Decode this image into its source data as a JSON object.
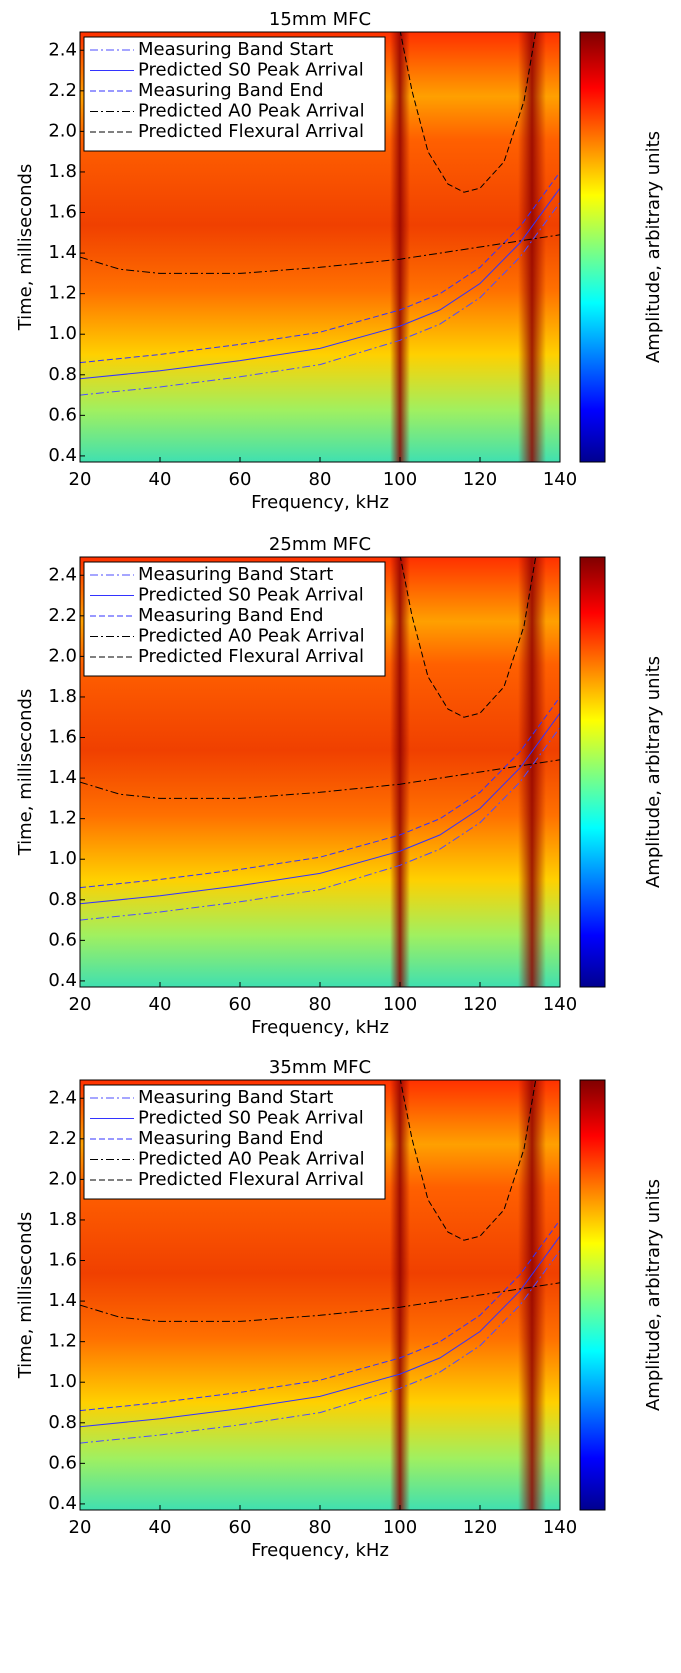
{
  "chart_data": [
    {
      "type": "line",
      "title": "15mm MFC",
      "xlabel": "Frequency, kHz",
      "ylabel": "Time, milliseconds",
      "colorbar_label": "Amplitude, arbitrary units",
      "xlim": [
        20,
        140
      ],
      "ylim": [
        0.37,
        2.49
      ],
      "xticks": [
        20,
        40,
        60,
        80,
        100,
        120,
        140
      ],
      "yticks": [
        0.4,
        0.6,
        0.8,
        {
          "value": 1,
          "label": "1.0"
        },
        1.2,
        1.4,
        1.6,
        1.8,
        {
          "value": 2,
          "label": "2.0"
        },
        2.2,
        2.4
      ],
      "legend": "upper left",
      "series": [
        {
          "name": "Measuring Band Start",
          "color": "#4d4dff",
          "style": "dash-dot",
          "x": [
            20,
            40,
            60,
            80,
            100,
            110,
            120,
            130,
            140
          ],
          "values": [
            0.7,
            0.74,
            0.79,
            0.85,
            0.97,
            1.05,
            1.18,
            1.38,
            1.65
          ]
        },
        {
          "name": "Predicted S0 Peak Arrival",
          "color": "#3333ff",
          "style": "solid",
          "x": [
            20,
            40,
            60,
            80,
            100,
            110,
            120,
            130,
            140
          ],
          "values": [
            0.78,
            0.82,
            0.87,
            0.93,
            1.04,
            1.12,
            1.25,
            1.45,
            1.72
          ]
        },
        {
          "name": "Measuring Band End",
          "color": "#3333ff",
          "style": "dashed",
          "x": [
            20,
            40,
            60,
            80,
            100,
            110,
            120,
            130,
            140
          ],
          "values": [
            0.86,
            0.9,
            0.95,
            1.01,
            1.12,
            1.2,
            1.33,
            1.53,
            1.8
          ]
        },
        {
          "name": "Predicted A0 Peak Arrival",
          "color": "#000000",
          "style": "dash-dot",
          "x": [
            20,
            30,
            40,
            60,
            80,
            100,
            120,
            140
          ],
          "values": [
            1.38,
            1.32,
            1.3,
            1.3,
            1.33,
            1.37,
            1.43,
            1.49
          ]
        },
        {
          "name": "Predicted Flexural Arrival",
          "color": "#000000",
          "style": "dashed",
          "x": [
            100,
            103,
            107,
            112,
            116,
            120,
            126,
            131,
            134
          ],
          "values": [
            2.5,
            2.2,
            1.9,
            1.74,
            1.7,
            1.72,
            1.85,
            2.15,
            2.5
          ]
        }
      ]
    },
    {
      "type": "line",
      "title": "25mm MFC",
      "xlabel": "Frequency, kHz",
      "ylabel": "Time, milliseconds",
      "colorbar_label": "Amplitude, arbitrary units",
      "xlim": [
        20,
        140
      ],
      "ylim": [
        0.37,
        2.49
      ],
      "xticks": [
        20,
        40,
        60,
        80,
        100,
        120,
        140
      ],
      "yticks": [
        0.4,
        0.6,
        0.8,
        {
          "value": 1,
          "label": "1.0"
        },
        1.2,
        1.4,
        1.6,
        1.8,
        {
          "value": 2,
          "label": "2.0"
        },
        2.2,
        2.4
      ],
      "legend": "upper left",
      "series": [
        {
          "name": "Measuring Band Start",
          "color": "#4d4dff",
          "style": "dash-dot",
          "x": [
            20,
            40,
            60,
            80,
            100,
            110,
            120,
            130,
            140
          ],
          "values": [
            0.7,
            0.74,
            0.79,
            0.85,
            0.97,
            1.05,
            1.18,
            1.38,
            1.65
          ]
        },
        {
          "name": "Predicted S0 Peak Arrival",
          "color": "#3333ff",
          "style": "solid",
          "x": [
            20,
            40,
            60,
            80,
            100,
            110,
            120,
            130,
            140
          ],
          "values": [
            0.78,
            0.82,
            0.87,
            0.93,
            1.04,
            1.12,
            1.25,
            1.45,
            1.72
          ]
        },
        {
          "name": "Measuring Band End",
          "color": "#3333ff",
          "style": "dashed",
          "x": [
            20,
            40,
            60,
            80,
            100,
            110,
            120,
            130,
            140
          ],
          "values": [
            0.86,
            0.9,
            0.95,
            1.01,
            1.12,
            1.2,
            1.33,
            1.53,
            1.8
          ]
        },
        {
          "name": "Predicted A0 Peak Arrival",
          "color": "#000000",
          "style": "dash-dot",
          "x": [
            20,
            30,
            40,
            60,
            80,
            100,
            120,
            140
          ],
          "values": [
            1.38,
            1.32,
            1.3,
            1.3,
            1.33,
            1.37,
            1.43,
            1.49
          ]
        },
        {
          "name": "Predicted Flexural Arrival",
          "color": "#000000",
          "style": "dashed",
          "x": [
            100,
            103,
            107,
            112,
            116,
            120,
            126,
            131,
            134
          ],
          "values": [
            2.5,
            2.2,
            1.9,
            1.74,
            1.7,
            1.72,
            1.85,
            2.15,
            2.5
          ]
        }
      ]
    },
    {
      "type": "line",
      "title": "35mm MFC",
      "xlabel": "Frequency, kHz",
      "ylabel": "Time, milliseconds",
      "colorbar_label": "Amplitude, arbitrary units",
      "xlim": [
        20,
        140
      ],
      "ylim": [
        0.37,
        2.49
      ],
      "xticks": [
        20,
        40,
        60,
        80,
        100,
        120,
        140
      ],
      "yticks": [
        0.4,
        0.6,
        0.8,
        {
          "value": 1,
          "label": "1.0"
        },
        1.2,
        1.4,
        1.6,
        1.8,
        {
          "value": 2,
          "label": "2.0"
        },
        2.2,
        2.4
      ],
      "legend": "upper left",
      "series": [
        {
          "name": "Measuring Band Start",
          "color": "#4d4dff",
          "style": "dash-dot",
          "x": [
            20,
            40,
            60,
            80,
            100,
            110,
            120,
            130,
            140
          ],
          "values": [
            0.7,
            0.74,
            0.79,
            0.85,
            0.97,
            1.05,
            1.18,
            1.38,
            1.65
          ]
        },
        {
          "name": "Predicted S0 Peak Arrival",
          "color": "#3333ff",
          "style": "solid",
          "x": [
            20,
            40,
            60,
            80,
            100,
            110,
            120,
            130,
            140
          ],
          "values": [
            0.78,
            0.82,
            0.87,
            0.93,
            1.04,
            1.12,
            1.25,
            1.45,
            1.72
          ]
        },
        {
          "name": "Measuring Band End",
          "color": "#3333ff",
          "style": "dashed",
          "x": [
            20,
            40,
            60,
            80,
            100,
            110,
            120,
            130,
            140
          ],
          "values": [
            0.86,
            0.9,
            0.95,
            1.01,
            1.12,
            1.2,
            1.33,
            1.53,
            1.8
          ]
        },
        {
          "name": "Predicted A0 Peak Arrival",
          "color": "#000000",
          "style": "dash-dot",
          "x": [
            20,
            30,
            40,
            60,
            80,
            100,
            120,
            140
          ],
          "values": [
            1.38,
            1.32,
            1.3,
            1.3,
            1.33,
            1.37,
            1.43,
            1.49
          ]
        },
        {
          "name": "Predicted Flexural Arrival",
          "color": "#000000",
          "style": "dashed",
          "x": [
            100,
            103,
            107,
            112,
            116,
            120,
            126,
            131,
            134
          ],
          "values": [
            2.5,
            2.2,
            1.9,
            1.74,
            1.7,
            1.72,
            1.85,
            2.15,
            2.5
          ]
        }
      ]
    }
  ]
}
